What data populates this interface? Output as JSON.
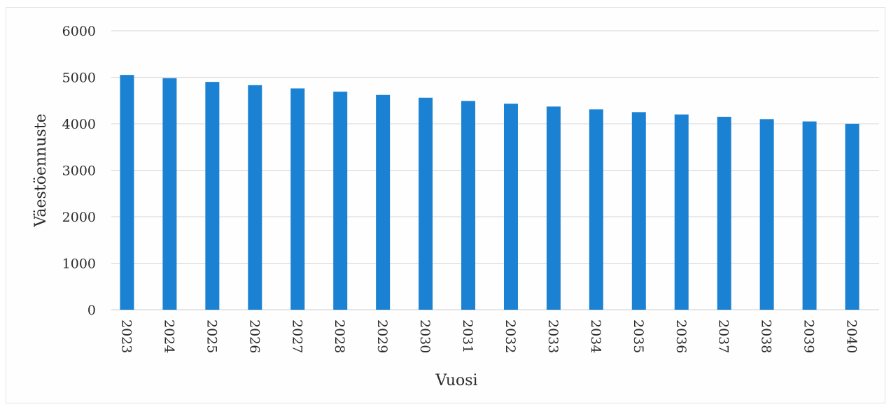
{
  "chart_data": {
    "type": "bar",
    "title": "",
    "xlabel": "Vuosi",
    "ylabel": "Väestöennuste",
    "ylim": [
      0,
      6000
    ],
    "yticks": [
      0,
      1000,
      2000,
      3000,
      4000,
      5000,
      6000
    ],
    "grid": true,
    "legend": "none",
    "categories": [
      "2023",
      "2024",
      "2025",
      "2026",
      "2027",
      "2028",
      "2029",
      "2030",
      "2031",
      "2032",
      "2033",
      "2034",
      "2035",
      "2036",
      "2037",
      "2038",
      "2039",
      "2040"
    ],
    "series": [
      {
        "values": [
          5050,
          4980,
          4900,
          4830,
          4760,
          4690,
          4620,
          4560,
          4490,
          4430,
          4370,
          4310,
          4250,
          4200,
          4150,
          4100,
          4050,
          4000
        ]
      }
    ],
    "colors": {
      "bar": "#1b82d3"
    }
  }
}
